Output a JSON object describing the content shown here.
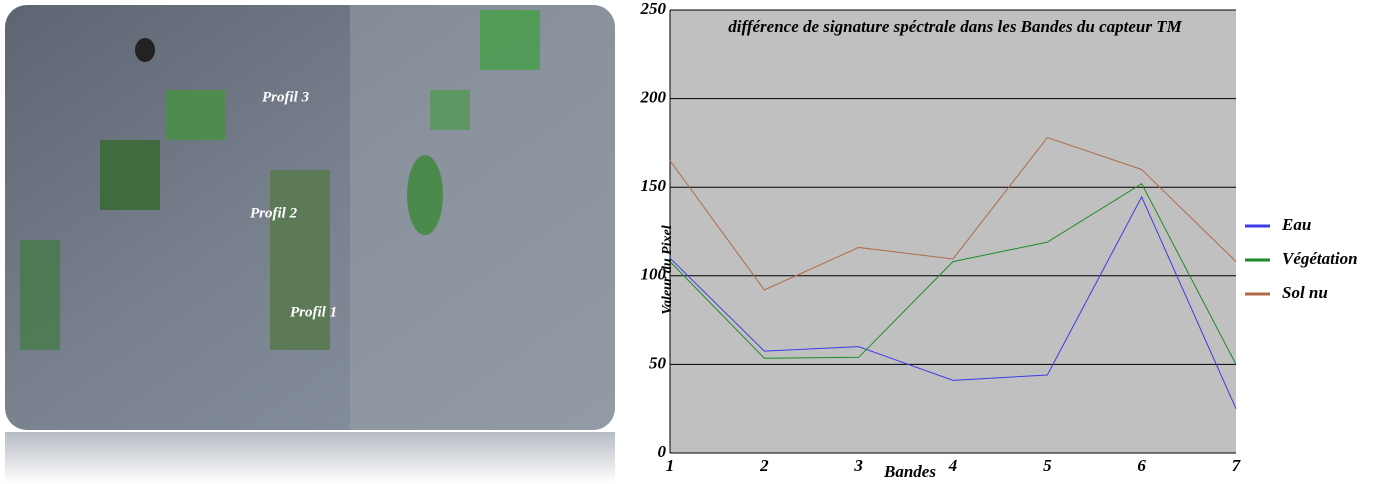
{
  "image_labels": [
    "Profil 3",
    "Profil 2",
    "Profil 1"
  ],
  "chart_data": {
    "type": "line",
    "title": "différence de signature spéctrale dans les Bandes du capteur TM",
    "x_label": "Bandes",
    "y_label": "Valeur du Pixel",
    "x": [
      1,
      2,
      3,
      4,
      5,
      6,
      7
    ],
    "xlim": [
      1,
      7
    ],
    "xticks": [
      1,
      2,
      3,
      4,
      5,
      6,
      7
    ],
    "ylim": [
      0,
      250
    ],
    "yticks": [
      0,
      50,
      100,
      150,
      200,
      250
    ],
    "grid": true,
    "legend": "right",
    "series": [
      {
        "name": "Eau",
        "color": "#3c3ce6",
        "values": [
          110,
          57.5,
          60,
          41,
          44,
          144.5,
          25
        ]
      },
      {
        "name": "Végétation",
        "color": "#1f8a2a",
        "values": [
          108,
          53.5,
          54,
          108,
          119,
          152,
          50
        ]
      },
      {
        "name": "Sol nu",
        "color": "#b06a4a",
        "values": [
          165,
          92,
          116,
          109.5,
          178,
          160,
          108
        ]
      }
    ]
  }
}
